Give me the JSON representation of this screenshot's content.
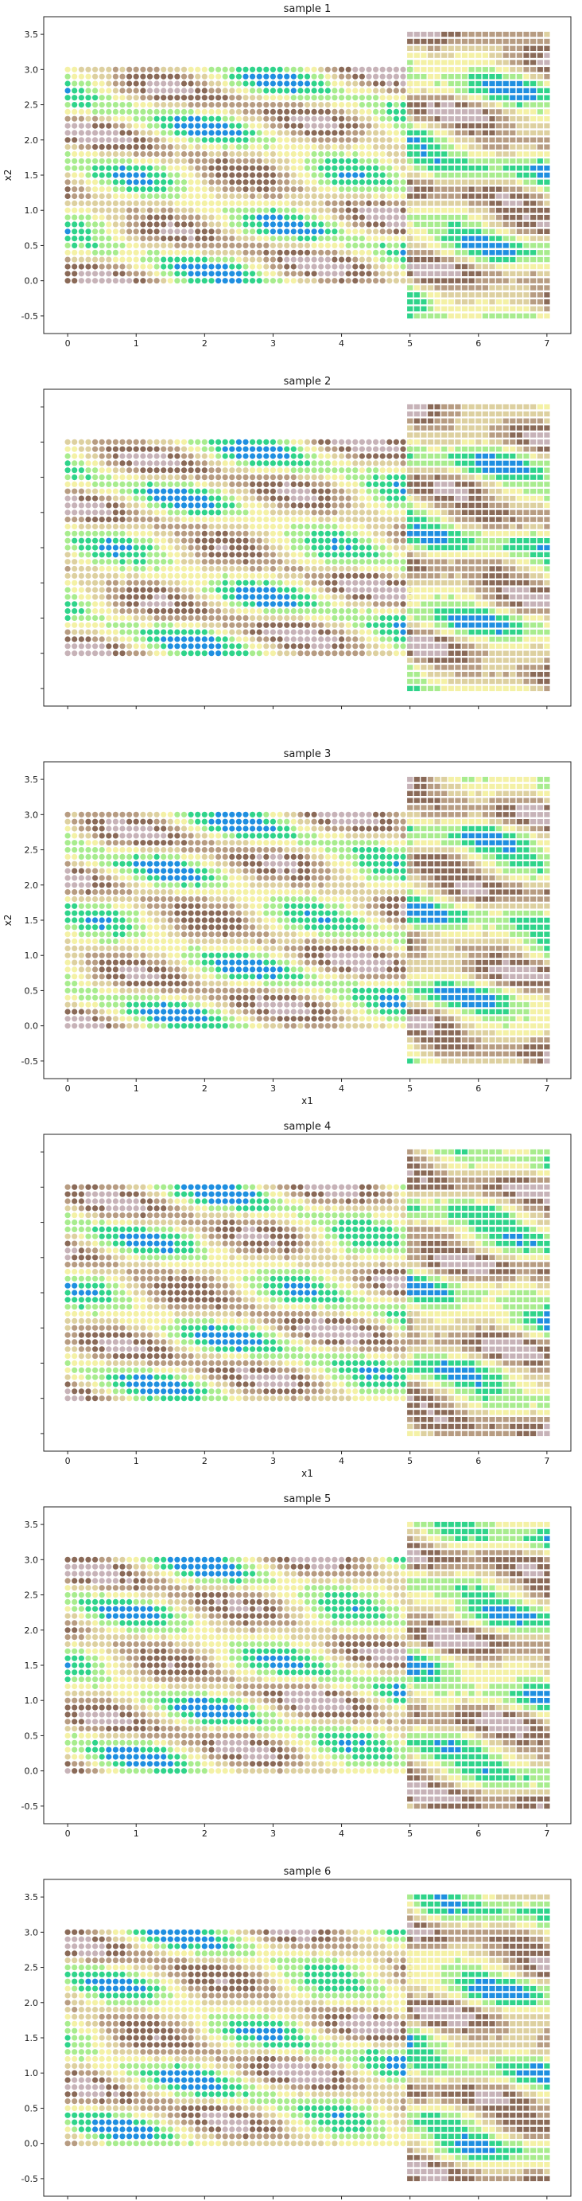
{
  "colormap": [
    "#1f8fe0",
    "#2fd48a",
    "#a8ec8e",
    "#f4f1a6",
    "#ddd0a0",
    "#b79c82",
    "#8a6a58",
    "#c7b3b8"
  ],
  "point_marker": "circle",
  "grid_marker": "square",
  "chart_data": [
    {
      "type": "scatter",
      "title": "sample 1",
      "xlabel": "",
      "ylabel": "x2",
      "xlim": [
        -0.35,
        7.35
      ],
      "ylim": [
        -0.75,
        3.75
      ],
      "xticks": [
        0,
        1,
        2,
        3,
        4,
        5,
        6,
        7
      ],
      "yticks": [
        -0.5,
        0.0,
        0.5,
        1.0,
        1.5,
        2.0,
        2.5,
        3.0,
        3.5
      ],
      "show_xticklabels": true,
      "show_yticklabels": true,
      "scattered_points": {
        "x_range": [
          0,
          5
        ],
        "y_range": [
          0,
          3
        ],
        "step": 0.1
      },
      "grid_points": {
        "x_range": [
          5,
          7
        ],
        "y_range": [
          -0.5,
          3.5
        ],
        "step": 0.1
      },
      "seed": 1
    },
    {
      "type": "scatter",
      "title": "sample 2",
      "xlabel": "",
      "ylabel": "",
      "xlim": [
        -0.35,
        7.35
      ],
      "ylim": [
        -0.75,
        3.75
      ],
      "xticks": [
        0,
        1,
        2,
        3,
        4,
        5,
        6,
        7
      ],
      "yticks": [
        -0.5,
        0.0,
        0.5,
        1.0,
        1.5,
        2.0,
        2.5,
        3.0,
        3.5
      ],
      "show_xticklabels": false,
      "show_yticklabels": false,
      "scattered_points": {
        "x_range": [
          0,
          5
        ],
        "y_range": [
          0,
          3
        ],
        "step": 0.1
      },
      "grid_points": {
        "x_range": [
          5,
          7
        ],
        "y_range": [
          -0.5,
          3.5
        ],
        "step": 0.1
      },
      "seed": 2
    },
    {
      "type": "scatter",
      "title": "sample 3",
      "xlabel": "x1",
      "ylabel": "x2",
      "xlim": [
        -0.35,
        7.35
      ],
      "ylim": [
        -0.75,
        3.75
      ],
      "xticks": [
        0,
        1,
        2,
        3,
        4,
        5,
        6,
        7
      ],
      "yticks": [
        -0.5,
        0.0,
        0.5,
        1.0,
        1.5,
        2.0,
        2.5,
        3.0,
        3.5
      ],
      "show_xticklabels": true,
      "show_yticklabels": true,
      "scattered_points": {
        "x_range": [
          0,
          5
        ],
        "y_range": [
          0,
          3
        ],
        "step": 0.1
      },
      "grid_points": {
        "x_range": [
          5,
          7
        ],
        "y_range": [
          -0.5,
          3.5
        ],
        "step": 0.1
      },
      "seed": 3
    },
    {
      "type": "scatter",
      "title": "sample 4",
      "xlabel": "x1",
      "ylabel": "",
      "xlim": [
        -0.35,
        7.35
      ],
      "ylim": [
        -0.75,
        3.75
      ],
      "xticks": [
        0,
        1,
        2,
        3,
        4,
        5,
        6,
        7
      ],
      "yticks": [
        -0.5,
        0.0,
        0.5,
        1.0,
        1.5,
        2.0,
        2.5,
        3.0,
        3.5
      ],
      "show_xticklabels": true,
      "show_yticklabels": false,
      "scattered_points": {
        "x_range": [
          0,
          5
        ],
        "y_range": [
          0,
          3
        ],
        "step": 0.1
      },
      "grid_points": {
        "x_range": [
          5,
          7
        ],
        "y_range": [
          -0.5,
          3.5
        ],
        "step": 0.1
      },
      "seed": 4
    },
    {
      "type": "scatter",
      "title": "sample 5",
      "xlabel": "",
      "ylabel": "",
      "xlim": [
        -0.35,
        7.35
      ],
      "ylim": [
        -0.75,
        3.75
      ],
      "xticks": [
        0,
        1,
        2,
        3,
        4,
        5,
        6,
        7
      ],
      "yticks": [
        -0.5,
        0.0,
        0.5,
        1.0,
        1.5,
        2.0,
        2.5,
        3.0,
        3.5
      ],
      "show_xticklabels": true,
      "show_yticklabels": true,
      "scattered_points": {
        "x_range": [
          0,
          5
        ],
        "y_range": [
          0,
          3
        ],
        "step": 0.1
      },
      "grid_points": {
        "x_range": [
          5,
          7
        ],
        "y_range": [
          -0.5,
          3.5
        ],
        "step": 0.1
      },
      "seed": 5
    },
    {
      "type": "scatter",
      "title": "sample 6",
      "xlabel": "",
      "ylabel": "",
      "xlim": [
        -0.35,
        7.35
      ],
      "ylim": [
        -0.75,
        3.75
      ],
      "xticks": [
        0,
        1,
        2,
        3,
        4,
        5,
        6,
        7
      ],
      "yticks": [
        -0.5,
        0.0,
        0.5,
        1.0,
        1.5,
        2.0,
        2.5,
        3.0,
        3.5
      ],
      "show_xticklabels": true,
      "show_yticklabels": true,
      "scattered_points": {
        "x_range": [
          0,
          5
        ],
        "y_range": [
          0,
          3
        ],
        "step": 0.1
      },
      "grid_points": {
        "x_range": [
          5,
          7
        ],
        "y_range": [
          -0.5,
          3.5
        ],
        "step": 0.1
      },
      "seed": 6
    }
  ]
}
